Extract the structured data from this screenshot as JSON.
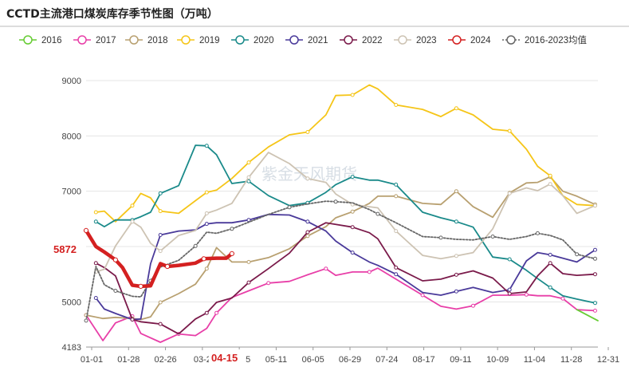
{
  "chart_data": {
    "type": "line",
    "title": "CCTD主流港口煤炭库存季节性图（万吨）",
    "xlabel": "",
    "ylabel": "",
    "ylim": [
      4183,
      9000
    ],
    "y_ticks": [
      "9000",
      "8000",
      "7000",
      "6000",
      "5000",
      "4183"
    ],
    "x_tick_labels": [
      "01-01",
      "01-28",
      "02-26",
      "03-2",
      "04-15",
      "05-11",
      "06-05",
      "06-29",
      "07-24",
      "08-17",
      "09-11",
      "10-09",
      "11-04",
      "11-28",
      "12-31"
    ],
    "highlight_y_label": "5872",
    "highlight_x_label": "04-15",
    "watermark": "紫金天风期货",
    "grid": true,
    "legend_position": "top",
    "series": [
      {
        "name": "2016",
        "color": "#66cc33",
        "marker": "none",
        "values": [
          [
            350,
            4860
          ],
          [
            365,
            4660
          ]
        ]
      },
      {
        "name": "2017",
        "color": "#e83fa8",
        "marker": "circle",
        "values": [
          [
            0,
            4760
          ],
          [
            12,
            4300
          ],
          [
            21,
            4620
          ],
          [
            33,
            4740
          ],
          [
            39,
            4430
          ],
          [
            53,
            4270
          ],
          [
            66,
            4420
          ],
          [
            78,
            4390
          ],
          [
            86,
            4520
          ],
          [
            93,
            4800
          ],
          [
            104,
            5080
          ],
          [
            116,
            5200
          ],
          [
            130,
            5340
          ],
          [
            145,
            5370
          ],
          [
            158,
            5490
          ],
          [
            171,
            5600
          ],
          [
            178,
            5480
          ],
          [
            190,
            5540
          ],
          [
            202,
            5540
          ],
          [
            208,
            5610
          ],
          [
            221,
            5410
          ],
          [
            240,
            5120
          ],
          [
            253,
            4920
          ],
          [
            264,
            4870
          ],
          [
            276,
            4930
          ],
          [
            290,
            5120
          ],
          [
            302,
            5120
          ],
          [
            314,
            5130
          ],
          [
            322,
            5110
          ],
          [
            331,
            5110
          ],
          [
            340,
            5060
          ],
          [
            350,
            4860
          ],
          [
            363,
            4840
          ]
        ]
      },
      {
        "name": "2018",
        "color": "#b8a070",
        "marker": "circle",
        "values": [
          [
            0,
            4760
          ],
          [
            12,
            4700
          ],
          [
            21,
            4720
          ],
          [
            33,
            4700
          ],
          [
            39,
            4680
          ],
          [
            46,
            4730
          ],
          [
            53,
            4990
          ],
          [
            66,
            5150
          ],
          [
            78,
            5320
          ],
          [
            86,
            5600
          ],
          [
            93,
            5980
          ],
          [
            104,
            5720
          ],
          [
            116,
            5720
          ],
          [
            130,
            5800
          ],
          [
            145,
            5960
          ],
          [
            158,
            6190
          ],
          [
            171,
            6360
          ],
          [
            178,
            6520
          ],
          [
            190,
            6630
          ],
          [
            202,
            6780
          ],
          [
            208,
            6910
          ],
          [
            221,
            6910
          ],
          [
            240,
            6780
          ],
          [
            253,
            6760
          ],
          [
            264,
            7000
          ],
          [
            276,
            6720
          ],
          [
            290,
            6530
          ],
          [
            302,
            6970
          ],
          [
            314,
            7150
          ],
          [
            322,
            7160
          ],
          [
            331,
            7260
          ],
          [
            340,
            7000
          ],
          [
            350,
            6910
          ],
          [
            363,
            6760
          ]
        ]
      },
      {
        "name": "2019",
        "color": "#f5c518",
        "marker": "circle",
        "values": [
          [
            7,
            6620
          ],
          [
            13,
            6640
          ],
          [
            21,
            6450
          ],
          [
            33,
            6740
          ],
          [
            39,
            6960
          ],
          [
            46,
            6880
          ],
          [
            53,
            6640
          ],
          [
            66,
            6600
          ],
          [
            78,
            6830
          ],
          [
            86,
            6980
          ],
          [
            93,
            7020
          ],
          [
            104,
            7230
          ],
          [
            116,
            7520
          ],
          [
            130,
            7800
          ],
          [
            145,
            8020
          ],
          [
            158,
            8070
          ],
          [
            171,
            8380
          ],
          [
            178,
            8730
          ],
          [
            190,
            8740
          ],
          [
            202,
            8920
          ],
          [
            208,
            8850
          ],
          [
            221,
            8560
          ],
          [
            240,
            8480
          ],
          [
            253,
            8350
          ],
          [
            264,
            8500
          ],
          [
            276,
            8380
          ],
          [
            290,
            8120
          ],
          [
            302,
            8090
          ],
          [
            314,
            7760
          ],
          [
            322,
            7450
          ],
          [
            331,
            7280
          ],
          [
            340,
            6920
          ],
          [
            350,
            6760
          ],
          [
            363,
            6740
          ]
        ]
      },
      {
        "name": "2020",
        "color": "#1a8a8a",
        "marker": "circle",
        "values": [
          [
            7,
            6450
          ],
          [
            13,
            6360
          ],
          [
            21,
            6480
          ],
          [
            33,
            6480
          ],
          [
            39,
            6540
          ],
          [
            46,
            6620
          ],
          [
            53,
            6960
          ],
          [
            66,
            7100
          ],
          [
            78,
            7830
          ],
          [
            86,
            7820
          ],
          [
            93,
            7660
          ],
          [
            104,
            7140
          ],
          [
            116,
            7180
          ],
          [
            130,
            6920
          ],
          [
            145,
            6740
          ],
          [
            158,
            6790
          ],
          [
            171,
            6980
          ],
          [
            178,
            7120
          ],
          [
            190,
            7260
          ],
          [
            202,
            7200
          ],
          [
            208,
            7200
          ],
          [
            221,
            7120
          ],
          [
            240,
            6620
          ],
          [
            253,
            6520
          ],
          [
            264,
            6450
          ],
          [
            276,
            6350
          ],
          [
            290,
            5810
          ],
          [
            302,
            5770
          ],
          [
            314,
            5570
          ],
          [
            322,
            5420
          ],
          [
            331,
            5260
          ],
          [
            340,
            5110
          ],
          [
            350,
            5050
          ],
          [
            363,
            4980
          ]
        ]
      },
      {
        "name": "2021",
        "color": "#4a3a9a",
        "marker": "circle",
        "values": [
          [
            7,
            5070
          ],
          [
            13,
            4870
          ],
          [
            21,
            4790
          ],
          [
            33,
            4680
          ],
          [
            39,
            4690
          ],
          [
            46,
            5690
          ],
          [
            53,
            6210
          ],
          [
            66,
            6280
          ],
          [
            78,
            6300
          ],
          [
            86,
            6410
          ],
          [
            93,
            6430
          ],
          [
            104,
            6430
          ],
          [
            116,
            6480
          ],
          [
            130,
            6580
          ],
          [
            145,
            6570
          ],
          [
            158,
            6450
          ],
          [
            171,
            6280
          ],
          [
            178,
            6100
          ],
          [
            190,
            5890
          ],
          [
            202,
            5720
          ],
          [
            208,
            5660
          ],
          [
            221,
            5500
          ],
          [
            240,
            5170
          ],
          [
            253,
            5120
          ],
          [
            264,
            5190
          ],
          [
            276,
            5260
          ],
          [
            290,
            5170
          ],
          [
            302,
            5220
          ],
          [
            314,
            5740
          ],
          [
            322,
            5890
          ],
          [
            331,
            5850
          ],
          [
            340,
            5790
          ],
          [
            350,
            5720
          ],
          [
            363,
            5940
          ]
        ]
      },
      {
        "name": "2022",
        "color": "#7a1a4a",
        "marker": "circle",
        "values": [
          [
            7,
            5700
          ],
          [
            13,
            5620
          ],
          [
            21,
            5470
          ],
          [
            33,
            4680
          ],
          [
            39,
            4640
          ],
          [
            46,
            4620
          ],
          [
            53,
            4600
          ],
          [
            66,
            4420
          ],
          [
            78,
            4690
          ],
          [
            86,
            4800
          ],
          [
            93,
            4990
          ],
          [
            104,
            5070
          ],
          [
            116,
            5350
          ],
          [
            130,
            5600
          ],
          [
            145,
            5880
          ],
          [
            158,
            6260
          ],
          [
            171,
            6430
          ],
          [
            178,
            6400
          ],
          [
            190,
            6350
          ],
          [
            202,
            6250
          ],
          [
            208,
            6140
          ],
          [
            221,
            5620
          ],
          [
            240,
            5380
          ],
          [
            253,
            5410
          ],
          [
            264,
            5490
          ],
          [
            276,
            5560
          ],
          [
            290,
            5430
          ],
          [
            302,
            5150
          ],
          [
            314,
            5180
          ],
          [
            322,
            5470
          ],
          [
            331,
            5700
          ],
          [
            340,
            5510
          ],
          [
            350,
            5480
          ],
          [
            363,
            5500
          ]
        ]
      },
      {
        "name": "2023",
        "color": "#cdc3b3",
        "marker": "circle",
        "values": [
          [
            7,
            5540
          ],
          [
            13,
            5590
          ],
          [
            21,
            6010
          ],
          [
            33,
            6450
          ],
          [
            39,
            6350
          ],
          [
            46,
            6060
          ],
          [
            53,
            5920
          ],
          [
            66,
            6200
          ],
          [
            78,
            6290
          ],
          [
            86,
            6600
          ],
          [
            93,
            6660
          ],
          [
            104,
            6780
          ],
          [
            116,
            7250
          ],
          [
            130,
            7700
          ],
          [
            145,
            7500
          ],
          [
            158,
            7230
          ],
          [
            171,
            7160
          ],
          [
            178,
            6950
          ],
          [
            190,
            6760
          ],
          [
            202,
            6720
          ],
          [
            208,
            6700
          ],
          [
            221,
            6280
          ],
          [
            240,
            5840
          ],
          [
            253,
            5780
          ],
          [
            264,
            5830
          ],
          [
            276,
            5890
          ],
          [
            290,
            6320
          ],
          [
            302,
            6960
          ],
          [
            314,
            7060
          ],
          [
            322,
            7010
          ],
          [
            331,
            7130
          ],
          [
            340,
            6920
          ],
          [
            350,
            6600
          ],
          [
            363,
            6740
          ]
        ]
      },
      {
        "name": "2024",
        "color": "#d42020",
        "marker": "circle",
        "values": [
          [
            0,
            6290
          ],
          [
            7,
            6000
          ],
          [
            13,
            5900
          ],
          [
            21,
            5760
          ],
          [
            26,
            5620
          ],
          [
            33,
            5300
          ],
          [
            39,
            5280
          ],
          [
            46,
            5290
          ],
          [
            53,
            5690
          ],
          [
            58,
            5640
          ],
          [
            66,
            5660
          ],
          [
            78,
            5700
          ],
          [
            84,
            5780
          ],
          [
            93,
            5790
          ],
          [
            100,
            5790
          ],
          [
            104,
            5872
          ]
        ]
      },
      {
        "name": "2016-2023均值",
        "color": "#666666",
        "marker": "circle",
        "dashed": true,
        "values": [
          [
            0,
            4660
          ],
          [
            7,
            5640
          ],
          [
            13,
            5310
          ],
          [
            21,
            5200
          ],
          [
            33,
            5100
          ],
          [
            39,
            5090
          ],
          [
            46,
            5380
          ],
          [
            53,
            5630
          ],
          [
            66,
            5750
          ],
          [
            78,
            6010
          ],
          [
            86,
            6260
          ],
          [
            93,
            6240
          ],
          [
            104,
            6320
          ],
          [
            116,
            6440
          ],
          [
            130,
            6580
          ],
          [
            145,
            6710
          ],
          [
            158,
            6770
          ],
          [
            171,
            6820
          ],
          [
            178,
            6810
          ],
          [
            190,
            6790
          ],
          [
            202,
            6670
          ],
          [
            208,
            6590
          ],
          [
            221,
            6430
          ],
          [
            240,
            6180
          ],
          [
            253,
            6160
          ],
          [
            264,
            6130
          ],
          [
            276,
            6120
          ],
          [
            290,
            6180
          ],
          [
            302,
            6130
          ],
          [
            314,
            6180
          ],
          [
            322,
            6240
          ],
          [
            331,
            6200
          ],
          [
            340,
            6120
          ],
          [
            350,
            5860
          ],
          [
            363,
            5780
          ]
        ]
      }
    ]
  }
}
